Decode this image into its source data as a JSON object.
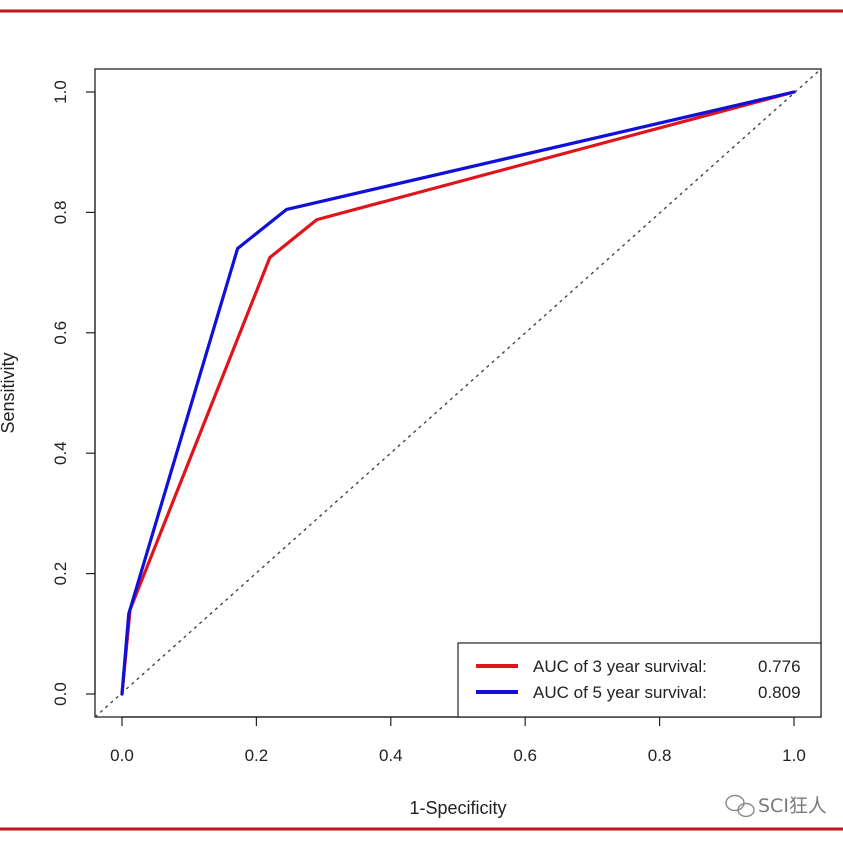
{
  "chart_data": {
    "type": "line",
    "title": "",
    "xlabel": "1-Specificity",
    "ylabel": "Sensitivity",
    "xlim": [
      0,
      1
    ],
    "ylim": [
      0,
      1
    ],
    "xticks": [
      "0.0",
      "0.2",
      "0.4",
      "0.6",
      "0.8",
      "1.0"
    ],
    "yticks": [
      "0.0",
      "0.2",
      "0.4",
      "0.6",
      "0.8",
      "1.0"
    ],
    "grid": false,
    "legend_position": "bottom-right",
    "reference_line": {
      "x": [
        0,
        1
      ],
      "y": [
        0,
        1
      ],
      "style": "dotted"
    },
    "series": [
      {
        "name": "AUC of 3 year survival:",
        "auc": "0.776",
        "color": "#e0141b",
        "x": [
          0.0,
          0.012,
          0.22,
          0.29,
          1.0
        ],
        "y": [
          0.0,
          0.14,
          0.725,
          0.788,
          1.0
        ]
      },
      {
        "name": "AUC of 5 year survival:",
        "auc": "0.809",
        "color": "#1010d8",
        "x": [
          0.0,
          0.01,
          0.172,
          0.245,
          1.0
        ],
        "y": [
          0.0,
          0.133,
          0.74,
          0.805,
          1.0
        ]
      }
    ]
  },
  "frame_color": "#c0161e",
  "watermark": {
    "icon": "wechat-icon",
    "text": "SCI狂人"
  }
}
